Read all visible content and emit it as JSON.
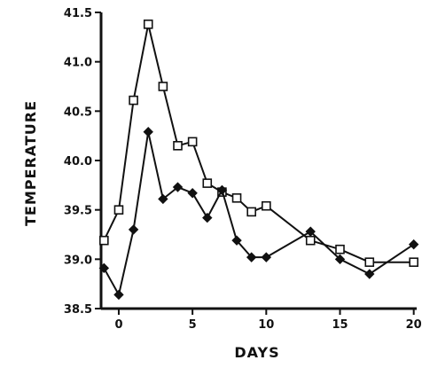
{
  "chart_data": {
    "type": "line",
    "title": "",
    "xlabel": "DAYS",
    "ylabel": "TEMPERATURE",
    "xlim": [
      -1.2,
      20.2
    ],
    "ylim": [
      38.5,
      41.5
    ],
    "xticks": [
      0,
      5,
      10,
      15,
      20
    ],
    "xtick_labels": [
      "0",
      "5",
      "10",
      "15",
      "20"
    ],
    "yticks": [
      38.5,
      39.0,
      39.5,
      40.0,
      40.5,
      41.0,
      41.5
    ],
    "ytick_labels": [
      "38.5",
      "39.0",
      "39.5",
      "40.0",
      "40.5",
      "41.0",
      "41.5"
    ],
    "grid": false,
    "legend": "none",
    "series": [
      {
        "marker": "open-square",
        "color": "#111111",
        "x": [
          -1,
          0,
          1,
          2,
          3,
          4,
          5,
          6,
          7,
          8,
          9,
          10,
          13,
          15,
          17,
          20
        ],
        "y": [
          39.19,
          39.5,
          40.61,
          41.38,
          40.75,
          40.15,
          40.19,
          39.77,
          39.68,
          39.62,
          39.48,
          39.54,
          39.19,
          39.1,
          38.97,
          38.97
        ]
      },
      {
        "marker": "filled-diamond",
        "color": "#111111",
        "x": [
          -1,
          0,
          1,
          2,
          3,
          4,
          5,
          6,
          7,
          8,
          9,
          10,
          13,
          15,
          17,
          20
        ],
        "y": [
          38.91,
          38.64,
          39.3,
          40.29,
          39.61,
          39.73,
          39.67,
          39.42,
          39.7,
          39.19,
          39.02,
          39.02,
          39.28,
          39.0,
          38.85,
          39.15
        ]
      }
    ]
  }
}
